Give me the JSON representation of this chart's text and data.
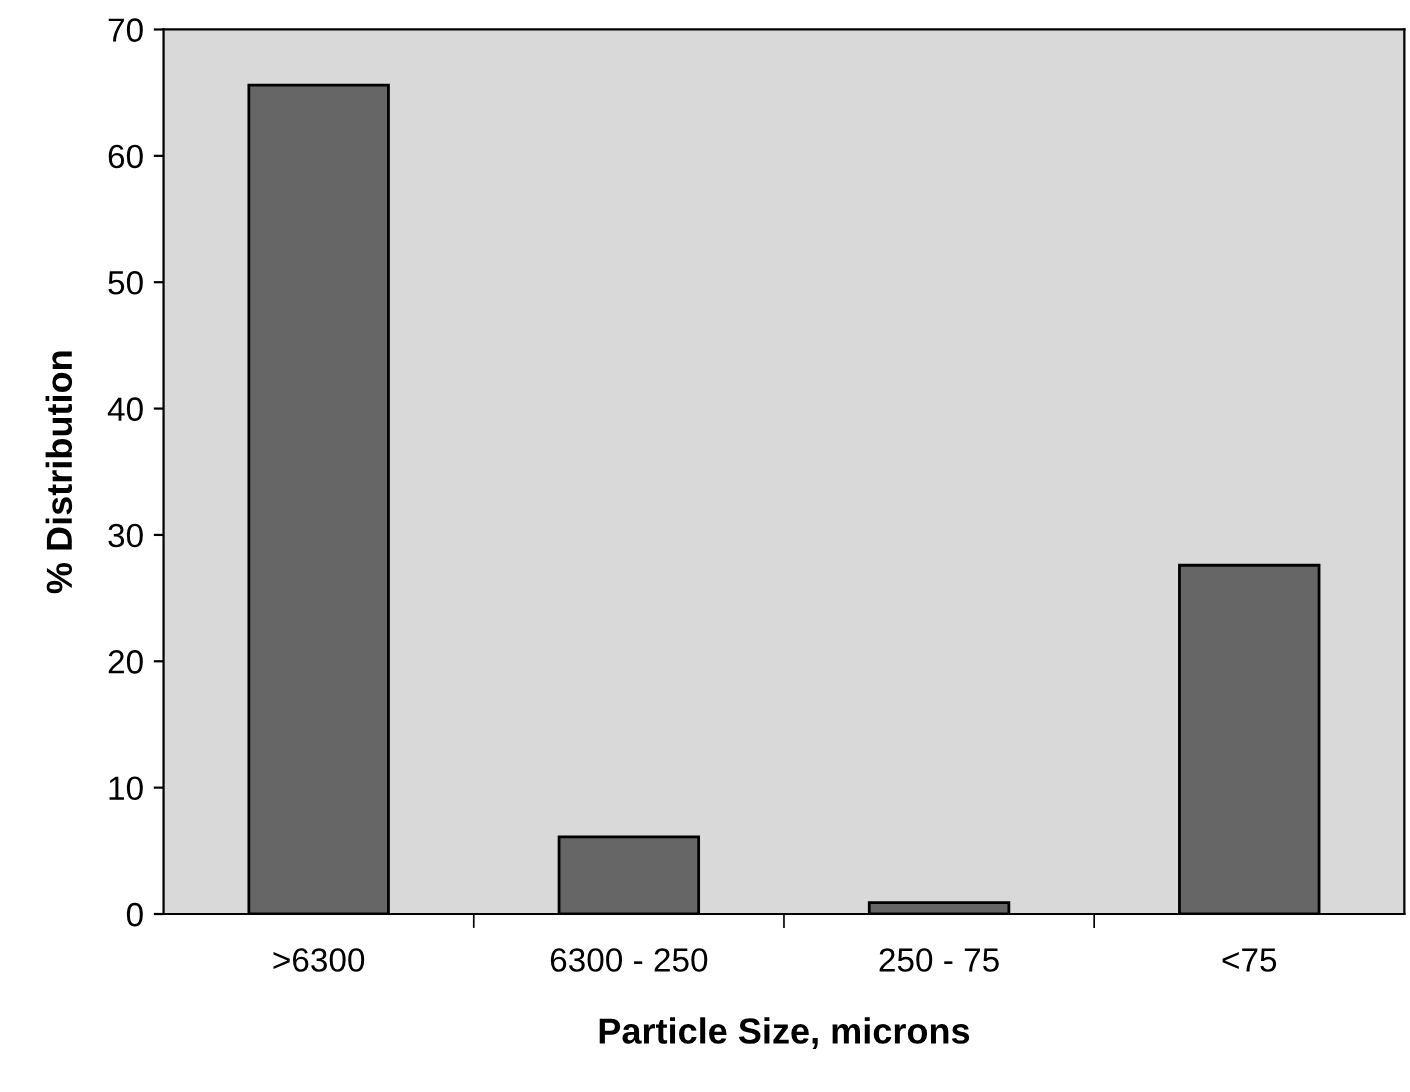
{
  "chart_data": {
    "type": "bar",
    "xlabel": "Particle Size, microns",
    "ylabel": "% Distribution",
    "categories": [
      ">6300",
      "6300 - 250",
      "250 - 75",
      "<75"
    ],
    "values": [
      65.6,
      6.1,
      0.9,
      27.6
    ],
    "color": "#666666",
    "ylim": [
      0,
      70
    ],
    "yticks": [
      0,
      10,
      20,
      30,
      40,
      50,
      60,
      70
    ],
    "grid": false,
    "legend": false
  }
}
